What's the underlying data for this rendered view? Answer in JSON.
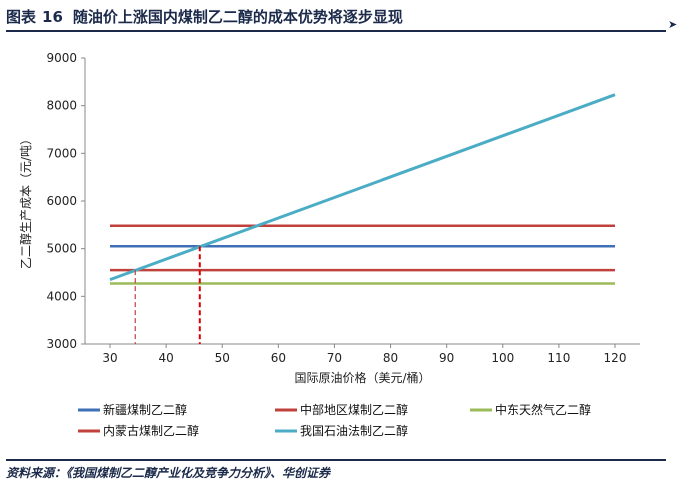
{
  "header": {
    "figure_label": "图表",
    "figure_number": "16",
    "title": "随油价上涨国内煤制乙二醇的成本优势将逐步显现",
    "corner_icon": "arrow-icon"
  },
  "source": "资料来源：《我国煤制乙二醇产业化及竞争力分析》、华创证券",
  "chart_data": {
    "type": "line",
    "xlabel": "国际原油价格（美元/桶）",
    "ylabel": "乙二醇生产成本（元/吨）",
    "xlim": [
      30,
      120
    ],
    "ylim": [
      3000,
      9000
    ],
    "xticks": [
      30,
      40,
      50,
      60,
      70,
      80,
      90,
      100,
      110,
      120
    ],
    "yticks": [
      3000,
      4000,
      5000,
      6000,
      7000,
      8000,
      9000
    ],
    "grid": false,
    "legend_position": "bottom",
    "series": [
      {
        "name": "新疆煤制乙二醇",
        "color": "#3f6fb5",
        "x": [
          30,
          120
        ],
        "y": [
          5050,
          5050
        ]
      },
      {
        "name": "中部地区煤制乙二醇",
        "color": "#c0413b",
        "x": [
          30,
          120
        ],
        "y": [
          5480,
          5480
        ]
      },
      {
        "name": "中东天然气乙二醇",
        "color": "#9bbb59",
        "x": [
          30,
          120
        ],
        "y": [
          4270,
          4270
        ]
      },
      {
        "name": "内蒙古煤制乙二醇",
        "color": "#c0413b",
        "x": [
          30,
          120
        ],
        "y": [
          4550,
          4550
        ]
      },
      {
        "name": "我国石油法制乙二醇",
        "color": "#4bacc6",
        "x": [
          30,
          120
        ],
        "y": [
          4350,
          8230
        ]
      }
    ],
    "reference_lines": [
      {
        "x": 34.5,
        "y": 4550,
        "color": "#c0413b",
        "style": "dashed"
      },
      {
        "x": 46,
        "y": 5050,
        "color": "#e00000",
        "style": "dashed"
      }
    ]
  }
}
